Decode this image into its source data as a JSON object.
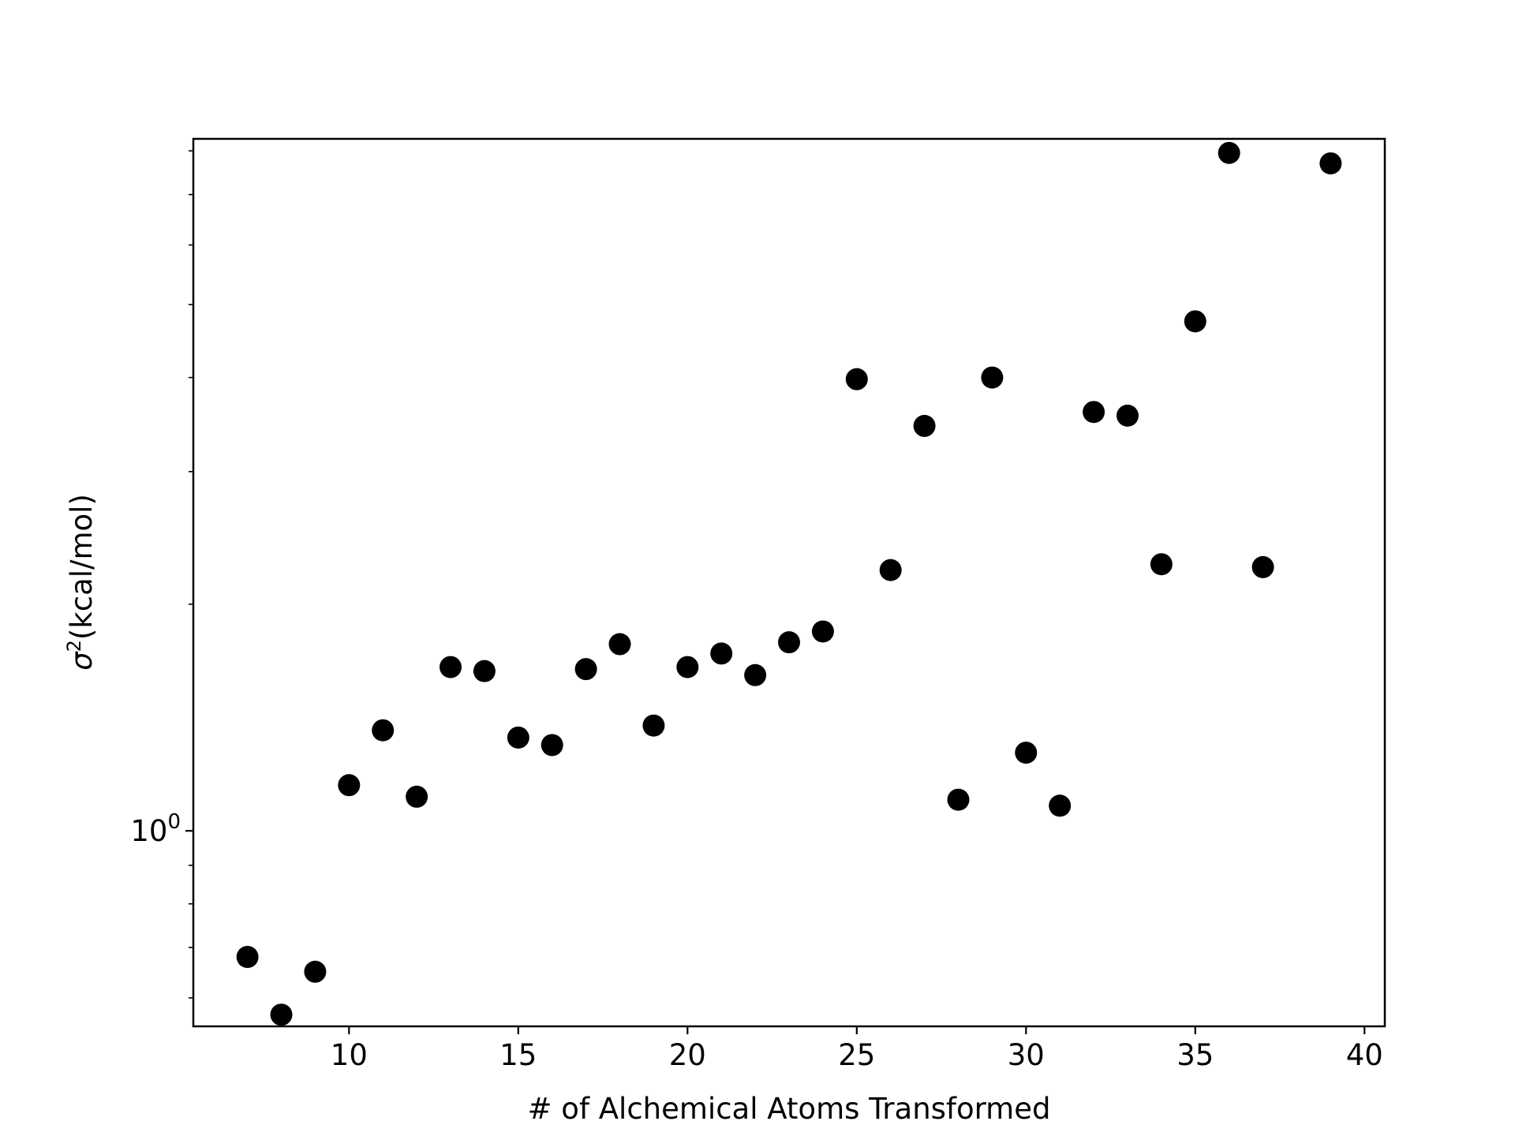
{
  "chart_data": {
    "type": "scatter",
    "title": "",
    "xlabel": "# of Alchemical Atoms Transformed",
    "ylabel_symbol": "σ",
    "ylabel_exponent": "2",
    "ylabel_rest": "(kcal/mol)",
    "xscale": "linear",
    "yscale": "log",
    "xlim": [
      5.4,
      40.6
    ],
    "ylim": [
      0.55,
      8.3
    ],
    "xticks": [
      {
        "value": 10,
        "label": "10"
      },
      {
        "value": 15,
        "label": "15"
      },
      {
        "value": 20,
        "label": "20"
      },
      {
        "value": 25,
        "label": "25"
      },
      {
        "value": 30,
        "label": "30"
      },
      {
        "value": 35,
        "label": "35"
      },
      {
        "value": 40,
        "label": "40"
      }
    ],
    "ytick_major": {
      "value": 1,
      "base": "10",
      "exponent": "0"
    },
    "ytick_minor": [
      0.6,
      0.7,
      0.8,
      0.9,
      2,
      3,
      4,
      5,
      6,
      7,
      8
    ],
    "grid": false,
    "marker_color": "#000000",
    "series": [
      {
        "x": [
          7,
          8,
          9,
          10,
          11,
          12,
          13,
          14,
          15,
          16,
          17,
          18,
          19,
          20,
          21,
          22,
          23,
          24,
          25,
          26,
          27,
          28,
          29,
          30,
          31,
          32,
          33,
          34,
          35,
          36,
          37,
          39
        ],
        "y": [
          0.68,
          0.57,
          0.65,
          1.15,
          1.36,
          1.11,
          1.65,
          1.63,
          1.33,
          1.3,
          1.64,
          1.77,
          1.38,
          1.65,
          1.72,
          1.61,
          1.78,
          1.84,
          3.98,
          2.22,
          3.45,
          1.1,
          4.0,
          1.27,
          1.08,
          3.6,
          3.56,
          2.26,
          4.75,
          7.95,
          2.24,
          7.7
        ]
      }
    ]
  }
}
